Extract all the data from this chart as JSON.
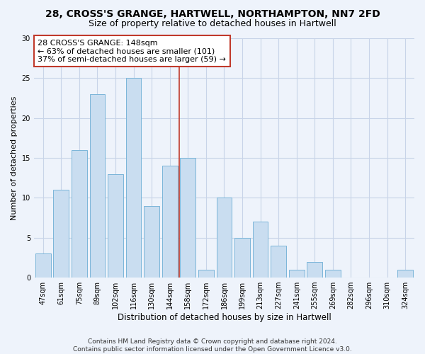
{
  "title": "28, CROSS'S GRANGE, HARTWELL, NORTHAMPTON, NN7 2FD",
  "subtitle": "Size of property relative to detached houses in Hartwell",
  "xlabel": "Distribution of detached houses by size in Hartwell",
  "ylabel": "Number of detached properties",
  "bar_labels": [
    "47sqm",
    "61sqm",
    "75sqm",
    "89sqm",
    "102sqm",
    "116sqm",
    "130sqm",
    "144sqm",
    "158sqm",
    "172sqm",
    "186sqm",
    "199sqm",
    "213sqm",
    "227sqm",
    "241sqm",
    "255sqm",
    "269sqm",
    "282sqm",
    "296sqm",
    "310sqm",
    "324sqm"
  ],
  "bar_values": [
    3,
    11,
    16,
    23,
    13,
    25,
    9,
    14,
    15,
    1,
    10,
    5,
    7,
    4,
    1,
    2,
    1,
    0,
    0,
    0,
    1
  ],
  "bar_color": "#c9ddf0",
  "bar_edge_color": "#7ab5d9",
  "vline_color": "#c0392b",
  "annotation_text": "28 CROSS'S GRANGE: 148sqm\n← 63% of detached houses are smaller (101)\n37% of semi-detached houses are larger (59) →",
  "annotation_box_color": "white",
  "annotation_box_edge_color": "#c0392b",
  "ylim": [
    0,
    30
  ],
  "yticks": [
    0,
    5,
    10,
    15,
    20,
    25,
    30
  ],
  "background_color": "#eef3fb",
  "grid_color": "#c8d4e8",
  "footer": "Contains HM Land Registry data © Crown copyright and database right 2024.\nContains public sector information licensed under the Open Government Licence v3.0.",
  "title_fontsize": 10,
  "subtitle_fontsize": 9,
  "xlabel_fontsize": 8.5,
  "ylabel_fontsize": 8,
  "tick_fontsize": 7,
  "annotation_fontsize": 8,
  "footer_fontsize": 6.5
}
